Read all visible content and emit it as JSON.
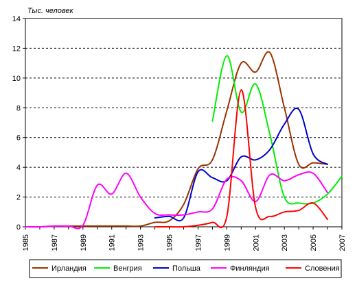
{
  "chart_data": {
    "type": "line",
    "unit_label": "Тыс. человек",
    "ylim": [
      0,
      14
    ],
    "yticks": [
      0,
      2,
      4,
      6,
      8,
      10,
      12,
      14
    ],
    "xlim": [
      1985,
      2007
    ],
    "xticks": [
      1985,
      1987,
      1989,
      1991,
      1993,
      1995,
      1997,
      1999,
      2001,
      2003,
      2005,
      2007
    ],
    "grid": "horizontal-dashed",
    "legend_position": "bottom",
    "series": [
      {
        "name": "Ирландия",
        "color": "#993300",
        "x": [
          1985,
          1986,
          1987,
          1988,
          1989,
          1990,
          1991,
          1992,
          1993,
          1994,
          1995,
          1996,
          1997,
          1998,
          1999,
          2000,
          2001,
          2002,
          2003,
          2004,
          2005,
          2006
        ],
        "y": [
          0,
          0,
          0.05,
          0.05,
          0.05,
          0.05,
          0.05,
          0.05,
          0.05,
          0.3,
          0.4,
          1.5,
          3.9,
          4.5,
          7.8,
          11.0,
          10.4,
          11.7,
          8.0,
          4.2,
          4.3,
          4.2
        ]
      },
      {
        "name": "Венгрия",
        "color": "#00ee00",
        "x": [
          1998,
          1999,
          2000,
          2001,
          2002,
          2003,
          2004,
          2005,
          2006,
          2007
        ],
        "y": [
          7.1,
          11.5,
          7.7,
          9.6,
          6.2,
          2.0,
          1.6,
          1.6,
          2.2,
          3.4
        ]
      },
      {
        "name": "Польша",
        "color": "#0000cc",
        "x": [
          1994,
          1995,
          1996,
          1997,
          1998,
          1999,
          2000,
          2001,
          2002,
          2003,
          2004,
          2005,
          2006
        ],
        "y": [
          0.6,
          0.7,
          0.6,
          3.7,
          3.3,
          3.1,
          4.7,
          4.5,
          5.2,
          6.9,
          7.9,
          4.9,
          4.2
        ]
      },
      {
        "name": "Финляндия",
        "color": "#ff00ff",
        "x": [
          1985,
          1986,
          1987,
          1988,
          1989,
          1990,
          1991,
          1992,
          1993,
          1994,
          1995,
          1996,
          1997,
          1998,
          1999,
          2000,
          2001,
          2002,
          2003,
          2004,
          2005,
          2006
        ],
        "y": [
          0,
          0,
          0.05,
          0.05,
          0.1,
          2.8,
          2.2,
          3.6,
          2.0,
          0.9,
          0.8,
          0.8,
          1.0,
          1.2,
          3.2,
          3.1,
          1.7,
          3.5,
          3.1,
          3.5,
          3.6,
          2.3
        ]
      },
      {
        "name": "Словения",
        "color": "#ff0000",
        "x": [
          1994,
          1995,
          1996,
          1997,
          1998,
          1999,
          2000,
          2001,
          2002,
          2003,
          2004,
          2005,
          2006
        ],
        "y": [
          0,
          0,
          0,
          0.1,
          0.3,
          0.7,
          9.2,
          1.3,
          0.7,
          1.0,
          1.1,
          1.6,
          0.5
        ]
      }
    ]
  }
}
